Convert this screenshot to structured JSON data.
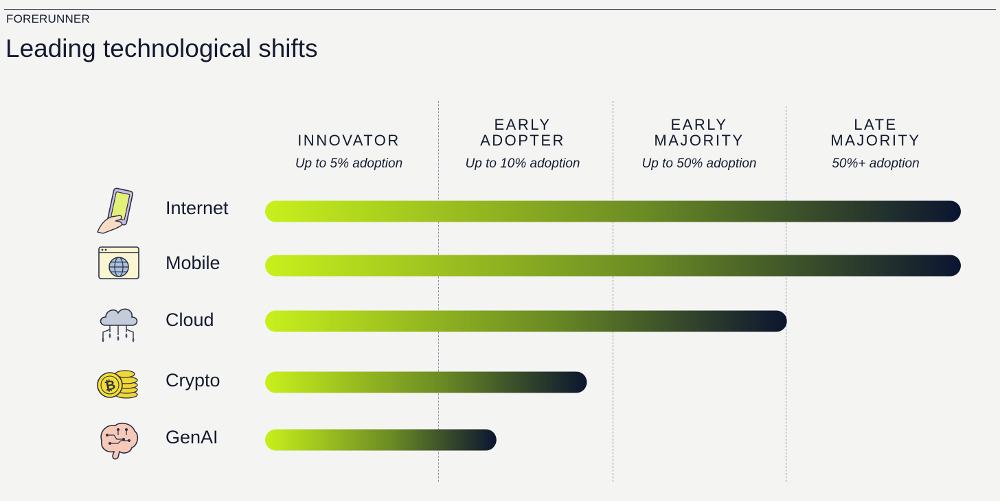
{
  "header": {
    "brand": "FORERUNNER",
    "title": "Leading technological shifts"
  },
  "chart_data": {
    "type": "bar",
    "orientation": "horizontal",
    "stages": [
      {
        "name": "INNOVATOR",
        "note": "Up to 5% adoption"
      },
      {
        "name": "EARLY\nADOPTER",
        "note": "Up to 10% adoption"
      },
      {
        "name": "EARLY\nMAJORITY",
        "note": "Up to 50% adoption"
      },
      {
        "name": "LATE\nMAJORITY",
        "note": "50%+ adoption"
      }
    ],
    "categories": [
      "Internet",
      "Mobile",
      "Cloud",
      "Crypto",
      "GenAI"
    ],
    "values": [
      4.0,
      4.0,
      3.0,
      1.85,
      1.33
    ],
    "xlim": [
      0,
      4
    ],
    "value_units": "adoption stages reached",
    "icons": [
      "hand-phone-icon",
      "browser-globe-icon",
      "cloud-network-icon",
      "bitcoin-coins-icon",
      "brain-circuit-icon"
    ],
    "gradient": {
      "start": "#c8f01c",
      "mid": "#6a8a24",
      "end": "#0b1530"
    }
  }
}
